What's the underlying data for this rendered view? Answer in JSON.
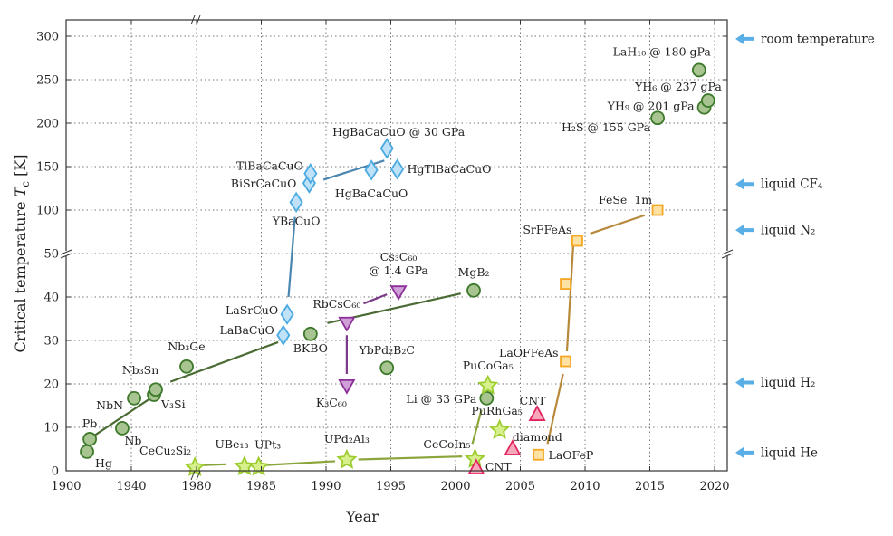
{
  "chart_data": {
    "type": "scatter",
    "xlabel": "Year",
    "ylabel": {
      "text": "Critical temperature ",
      "symbol": "T",
      "subscript": "c",
      "unit": " [K]"
    },
    "x_axis": {
      "broken_at": 1980,
      "segments": [
        [
          1900,
          1980
        ],
        [
          1980,
          2020
        ]
      ],
      "ticks": [
        1900,
        1940,
        1980,
        1985,
        1990,
        1995,
        2000,
        2005,
        2010,
        2015,
        2020
      ]
    },
    "y_axis": {
      "broken_at": 50,
      "segments": [
        [
          0,
          50
        ],
        [
          50,
          300
        ]
      ],
      "ticks": [
        0,
        10,
        20,
        30,
        40,
        50,
        100,
        150,
        200,
        250,
        300
      ]
    },
    "grid": true,
    "series": [
      {
        "marker": "circle",
        "fill": "#a8c490",
        "stroke": "#3e7a2c",
        "line_color": "#4b6b34",
        "points": [
          {
            "year": 1912.8,
            "tc": 4.4,
            "label": "Hg"
          },
          {
            "year": 1914.5,
            "tc": 7.3,
            "label": "Pb"
          },
          {
            "year": 1934.4,
            "tc": 9.8,
            "label": "Nb"
          },
          {
            "year": 1941.7,
            "tc": 16.7,
            "label": "NbN"
          },
          {
            "year": 1953.9,
            "tc": 17.5,
            "label": "V₃Si"
          },
          {
            "year": 1955.0,
            "tc": 18.7,
            "label": "Nb₃Sn"
          },
          {
            "year": 1973.9,
            "tc": 24.0,
            "label": "Nb₃Ge"
          },
          {
            "year": 1988.8,
            "tc": 31.5,
            "label": "BKBO"
          },
          {
            "year": 1994.7,
            "tc": 23.7,
            "label": "YbPd₂B₂C"
          },
          {
            "year": 2001.4,
            "tc": 41.5,
            "label": "MgB₂"
          },
          {
            "year": 2002.4,
            "tc": 16.7,
            "label": "Li @ 33 GPa"
          },
          {
            "year": 2015.6,
            "tc": 206,
            "label": "H₂S @ 155 GPa"
          },
          {
            "year": 2019.2,
            "tc": 218,
            "label": "YH₉ @ 201 gPa"
          },
          {
            "year": 2019.5,
            "tc": 226,
            "label": "YH₆ @ 237 gPa"
          },
          {
            "year": 2018.8,
            "tc": 261,
            "label": "LaH₁₀ @ 180 gPa"
          }
        ],
        "lines": [
          [
            [
              1916,
              7.8
            ],
            [
              1951,
              16.5
            ]
          ],
          [
            [
              1964,
              20.5
            ],
            [
              1986.3,
              29.6
            ]
          ],
          [
            [
              1990.1,
              34
            ],
            [
              2000.4,
              40.8
            ]
          ]
        ]
      },
      {
        "marker": "star",
        "fill": "#d6f08c",
        "stroke": "#9ccc2e",
        "line_color": "#8aa63a",
        "points": [
          {
            "year": 1979.0,
            "tc": 0.8,
            "label": "CeCu₂Si₂"
          },
          {
            "year": 1983.7,
            "tc": 1.0,
            "label": "UBe₁₃"
          },
          {
            "year": 1984.8,
            "tc": 0.9,
            "label": "UPt₃"
          },
          {
            "year": 1991.6,
            "tc": 2.5,
            "label": "UPd₂Al₃"
          },
          {
            "year": 2001.5,
            "tc": 2.7,
            "label": "CeCoIn₅"
          },
          {
            "year": 2002.5,
            "tc": 19.6,
            "label": "PuCoGa₅"
          },
          {
            "year": 2003.4,
            "tc": 9.4,
            "label": "PuRhGa₅"
          }
        ],
        "lines": [
          [
            [
              1980.4,
              1.3
            ],
            [
              1982.3,
              1.5
            ]
          ],
          [
            [
              1985.2,
              1.3
            ],
            [
              1990.7,
              2.2
            ]
          ],
          [
            [
              1992.5,
              2.6
            ],
            [
              2000.5,
              3.3
            ]
          ],
          [
            [
              2001.3,
              6.2
            ],
            [
              2002.0,
              14
            ]
          ]
        ]
      },
      {
        "marker": "diamond",
        "fill": "#bfe2f8",
        "stroke": "#4aaae2",
        "line_color": "#4a86b0",
        "points": [
          {
            "year": 1986.7,
            "tc": 31.2,
            "label": "LaBaCuO"
          },
          {
            "year": 1987.0,
            "tc": 36,
            "label": "LaSrCuO"
          },
          {
            "year": 1987.7,
            "tc": 109,
            "label": "YBaCuO"
          },
          {
            "year": 1988.7,
            "tc": 131,
            "label": "BiSrCaCuO"
          },
          {
            "year": 1988.8,
            "tc": 142,
            "label": "TlBaCaCuO"
          },
          {
            "year": 1993.5,
            "tc": 146,
            "label": "HgBaCaCuO"
          },
          {
            "year": 1994.7,
            "tc": 171,
            "label": "HgBaCaCuO @ 30 GPa"
          },
          {
            "year": 1995.5,
            "tc": 147,
            "label": "HgTlBaCaCuO"
          }
        ],
        "lines": [
          [
            [
              1987.1,
              40
            ],
            [
              1987.6,
              92
            ]
          ],
          [
            [
              1989.8,
              135
            ],
            [
              1994.5,
              157
            ]
          ]
        ]
      },
      {
        "marker": "triangle-down",
        "fill": "#cf9fd8",
        "stroke": "#8c2f98",
        "line_color": "#7a3a86",
        "points": [
          {
            "year": 1991.6,
            "tc": 19.4,
            "label": "K₃C₆₀"
          },
          {
            "year": 1991.6,
            "tc": 33.8,
            "label": "RbCsC₆₀"
          },
          {
            "year": 1995.6,
            "tc": 41,
            "label": "Cs₃C₆₀",
            "label2": "@ 1.4 GPa"
          }
        ],
        "lines": [
          [
            [
              1991.6,
              31.2
            ],
            [
              1991.6,
              22.3
            ]
          ],
          [
            [
              1992.9,
              38.5
            ],
            [
              1994.7,
              40.6
            ]
          ]
        ]
      },
      {
        "marker": "triangle-up",
        "fill": "#f7a9bb",
        "stroke": "#e1245e",
        "line_color": "#e1245e",
        "points": [
          {
            "year": 2001.6,
            "tc": 0.6,
            "label": "CNT"
          },
          {
            "year": 2004.4,
            "tc": 5.0,
            "label": "diamond"
          },
          {
            "year": 2006.3,
            "tc": 12.9,
            "label": "CNT"
          }
        ],
        "lines": []
      },
      {
        "marker": "square",
        "fill": "#fde2a4",
        "stroke": "#f5a623",
        "line_color": "#b8893a",
        "points": [
          {
            "year": 2006.4,
            "tc": 3.7,
            "label": "LaOFeP"
          },
          {
            "year": 2008.5,
            "tc": 25.2,
            "label": "LaOFFeAs"
          },
          {
            "year": 2008.5,
            "tc": 43,
            "label": ""
          },
          {
            "year": 2009.4,
            "tc": 64.6,
            "label": "SrFFeAs"
          },
          {
            "year": 2015.6,
            "tc": 100,
            "label": "FeSe  1m"
          }
        ],
        "lines": [
          [
            [
              2007.1,
              6.2
            ],
            [
              2008.3,
              22.3
            ]
          ],
          [
            [
              2008.6,
              27.5
            ],
            [
              2009.1,
              62
            ]
          ],
          [
            [
              2010.4,
              73
            ],
            [
              2014.6,
              94
            ]
          ]
        ]
      }
    ],
    "reference_temperatures": [
      {
        "label": "room temperature",
        "tc": 297
      },
      {
        "label": "liquid CF₄",
        "tc": 130
      },
      {
        "label": "liquid N₂",
        "tc": 77
      },
      {
        "label": "liquid H₂",
        "tc": 20.3
      },
      {
        "label": "liquid He",
        "tc": 4.2
      }
    ],
    "arrow_color": "#5aaee6"
  }
}
